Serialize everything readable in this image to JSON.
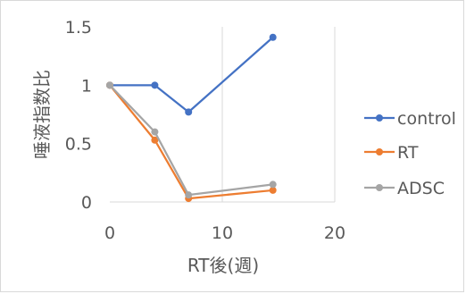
{
  "chart_data": {
    "type": "line",
    "xlabel": "RT後(週)",
    "ylabel": "唾液指数比",
    "xlim": [
      0,
      20
    ],
    "ylim": [
      0,
      1.5
    ],
    "x_ticks": [
      "0",
      "10",
      "20"
    ],
    "y_ticks": [
      "0",
      "0.5",
      "1",
      "1.5"
    ],
    "grid": "vertical",
    "legend_position": "right",
    "series": [
      {
        "name": "control",
        "color": "#4472c4",
        "x": [
          0,
          4,
          7,
          14.5
        ],
        "y": [
          1.0,
          1.0,
          0.77,
          1.41
        ]
      },
      {
        "name": "RT",
        "color": "#ed7d31",
        "x": [
          0,
          4,
          7,
          14.5
        ],
        "y": [
          1.0,
          0.53,
          0.03,
          0.1
        ]
      },
      {
        "name": "ADSC",
        "color": "#a5a5a5",
        "x": [
          0,
          4,
          7,
          14.5
        ],
        "y": [
          1.0,
          0.6,
          0.06,
          0.15
        ]
      }
    ]
  }
}
